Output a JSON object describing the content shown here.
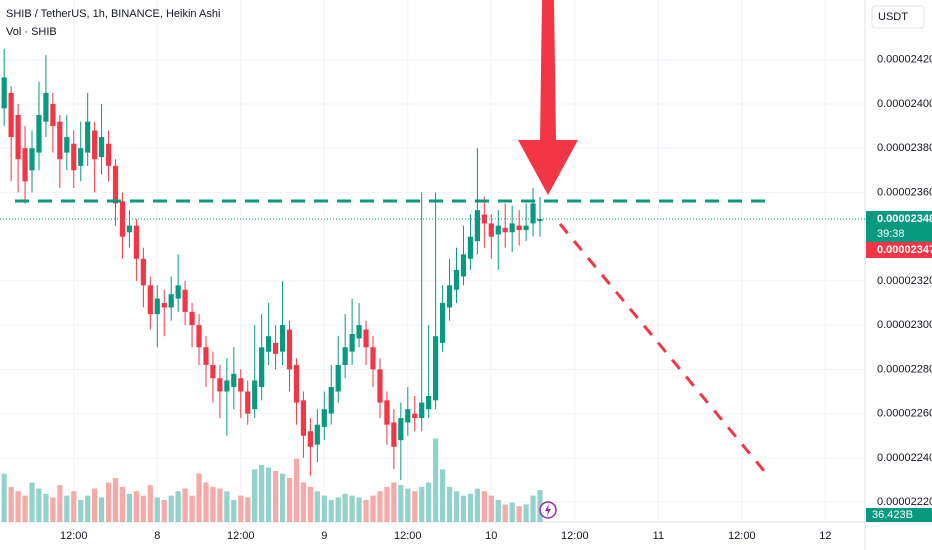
{
  "chart_data": {
    "type": "candlestick",
    "title": "SHIB / TetherUS, 1h, BINANCE, Heikin Ashi",
    "subtitle": "Vol · SHIB",
    "currency": "USDT",
    "up_color": "#089981",
    "down_color": "#f23645",
    "volume_up_color": "#92d2cc",
    "volume_down_color": "#f7a9a7",
    "xlim": [
      -0.6,
      123.7
    ],
    "xticks": [
      {
        "value": 10,
        "label": "12:00"
      },
      {
        "value": 22,
        "label": "8"
      },
      {
        "value": 34,
        "label": "12:00"
      },
      {
        "value": 46,
        "label": "9"
      },
      {
        "value": 58,
        "label": "12:00"
      },
      {
        "value": 70,
        "label": "10"
      },
      {
        "value": 82,
        "label": "12:00"
      },
      {
        "value": 94,
        "label": "11"
      },
      {
        "value": 106,
        "label": "12:00"
      },
      {
        "value": 118,
        "label": "12"
      }
    ],
    "ylim": [
      2.211e-05,
      2.447e-05
    ],
    "yticks": [
      {
        "value": 2.42e-05,
        "label": "0.00002420"
      },
      {
        "value": 2.4e-05,
        "label": "0.00002400"
      },
      {
        "value": 2.38e-05,
        "label": "0.00002380"
      },
      {
        "value": 2.36e-05,
        "label": "0.00002360"
      },
      {
        "value": 2.32e-05,
        "label": "0.00002320"
      },
      {
        "value": 2.3e-05,
        "label": "0.00002300"
      },
      {
        "value": 2.28e-05,
        "label": "0.00002280"
      },
      {
        "value": 2.26e-05,
        "label": "0.00002260"
      },
      {
        "value": 2.24e-05,
        "label": "0.00002240"
      },
      {
        "value": 2.22e-05,
        "label": "0.00002220"
      }
    ],
    "volume_lim": [
      0,
      594
    ],
    "open": [
      2.398e-05,
      2.405e-05,
      2.395e-05,
      2.38e-05,
      2.37e-05,
      2.378e-05,
      2.392e-05,
      2.4e-05,
      2.392e-05,
      2.378e-05,
      2.382e-05,
      2.372e-05,
      2.378e-05,
      2.388e-05,
      2.376e-05,
      2.382e-05,
      2.372e-05,
      2.356e-05,
      2.342e-05,
      2.345e-05,
      2.33e-05,
      2.318e-05,
      2.305e-05,
      2.31e-05,
      2.308e-05,
      2.312e-05,
      2.316e-05,
      2.306e-05,
      2.3e-05,
      2.29e-05,
      2.282e-05,
      2.276e-05,
      2.27e-05,
      2.272e-05,
      2.276e-05,
      2.27e-05,
      2.262e-05,
      2.272e-05,
      2.288e-05,
      2.292e-05,
      2.288e-05,
      2.298e-05,
      2.282e-05,
      2.266e-05,
      2.252e-05,
      2.246e-05,
      2.254e-05,
      2.26e-05,
      2.27e-05,
      2.282e-05,
      2.288e-05,
      2.294e-05,
      2.298e-05,
      2.29e-05,
      2.28e-05,
      2.266e-05,
      2.256e-05,
      2.248e-05,
      2.256e-05,
      2.26e-05,
      2.258e-05,
      2.262e-05,
      2.266e-05,
      2.292e-05,
      2.308e-05,
      2.316e-05,
      2.322e-05,
      2.33e-05,
      2.338e-05,
      2.35e-05,
      2.346e-05,
      2.341e-05,
      2.344e-05,
      2.342e-05,
      2.345e-05,
      2.343e-05,
      2.346e-05,
      2.347e-05
    ],
    "high": [
      2.425e-05,
      2.408e-05,
      2.4e-05,
      2.39e-05,
      2.388e-05,
      2.41e-05,
      2.422e-05,
      2.405e-05,
      2.395e-05,
      2.395e-05,
      2.388e-05,
      2.392e-05,
      2.405e-05,
      2.392e-05,
      2.4e-05,
      2.388e-05,
      2.375e-05,
      2.36e-05,
      2.352e-05,
      2.348e-05,
      2.335e-05,
      2.322e-05,
      2.318e-05,
      2.316e-05,
      2.322e-05,
      2.332e-05,
      2.32e-05,
      2.31e-05,
      2.305e-05,
      2.295e-05,
      2.288e-05,
      2.282e-05,
      2.285e-05,
      2.29e-05,
      2.28e-05,
      2.275e-05,
      2.3e-05,
      2.305e-05,
      2.31e-05,
      2.3e-05,
      2.32e-05,
      2.302e-05,
      2.285e-05,
      2.27e-05,
      2.258e-05,
      2.262e-05,
      2.27e-05,
      2.282e-05,
      2.295e-05,
      2.305e-05,
      2.312e-05,
      2.31e-05,
      2.302e-05,
      2.295e-05,
      2.285e-05,
      2.27e-05,
      2.262e-05,
      2.265e-05,
      2.272e-05,
      2.268e-05,
      2.36e-05,
      2.3e-05,
      2.36e-05,
      2.318e-05,
      2.33e-05,
      2.335e-05,
      2.345e-05,
      2.35e-05,
      2.38e-05,
      2.358e-05,
      2.35e-05,
      2.352e-05,
      2.355e-05,
      2.354e-05,
      2.352e-05,
      2.355e-05,
      2.362e-05,
      2.358e-05
    ],
    "low": [
      2.39e-05,
      2.365e-05,
      2.36e-05,
      2.355e-05,
      2.36e-05,
      2.37e-05,
      2.385e-05,
      2.378e-05,
      2.362e-05,
      2.37e-05,
      2.362e-05,
      2.365e-05,
      2.372e-05,
      2.36e-05,
      2.368e-05,
      2.365e-05,
      2.345e-05,
      2.33e-05,
      2.335e-05,
      2.32e-05,
      2.308e-05,
      2.298e-05,
      2.29e-05,
      2.295e-05,
      2.302e-05,
      2.306e-05,
      2.3e-05,
      2.29e-05,
      2.282e-05,
      2.272e-05,
      2.265e-05,
      2.258e-05,
      2.25e-05,
      2.262e-05,
      2.258e-05,
      2.255e-05,
      2.258e-05,
      2.266e-05,
      2.282e-05,
      2.28e-05,
      2.282e-05,
      2.27e-05,
      2.255e-05,
      2.24e-05,
      2.232e-05,
      2.238e-05,
      2.248e-05,
      2.255e-05,
      2.265e-05,
      2.276e-05,
      2.282e-05,
      2.29e-05,
      2.282e-05,
      2.272e-05,
      2.258e-05,
      2.246e-05,
      2.235e-05,
      2.23e-05,
      2.25e-05,
      2.252e-05,
      2.252e-05,
      2.258e-05,
      2.262e-05,
      2.288e-05,
      2.302e-05,
      2.31e-05,
      2.318e-05,
      2.325e-05,
      2.332e-05,
      2.335e-05,
      2.33e-05,
      2.325e-05,
      2.335e-05,
      2.333e-05,
      2.336e-05,
      2.338e-05,
      2.34e-05,
      2.34e-05
    ],
    "close": [
      2.412e-05,
      2.385e-05,
      2.375e-05,
      2.365e-05,
      2.38e-05,
      2.395e-05,
      2.405e-05,
      2.39e-05,
      2.375e-05,
      2.385e-05,
      2.37e-05,
      2.38e-05,
      2.392e-05,
      2.375e-05,
      2.385e-05,
      2.372e-05,
      2.355e-05,
      2.34e-05,
      2.345e-05,
      2.33e-05,
      2.318e-05,
      2.305e-05,
      2.312e-05,
      2.308e-05,
      2.314e-05,
      2.318e-05,
      2.306e-05,
      2.3e-05,
      2.29e-05,
      2.282e-05,
      2.276e-05,
      2.27e-05,
      2.275e-05,
      2.278e-05,
      2.27e-05,
      2.26e-05,
      2.275e-05,
      2.29e-05,
      2.295e-05,
      2.287e-05,
      2.3e-05,
      2.28e-05,
      2.265e-05,
      2.25e-05,
      2.245e-05,
      2.255e-05,
      2.262e-05,
      2.272e-05,
      2.282e-05,
      2.29e-05,
      2.296e-05,
      2.3e-05,
      2.29e-05,
      2.28e-05,
      2.265e-05,
      2.255e-05,
      2.245e-05,
      2.258e-05,
      2.262e-05,
      2.258e-05,
      2.265e-05,
      2.268e-05,
      2.295e-05,
      2.31e-05,
      2.318e-05,
      2.325e-05,
      2.332e-05,
      2.34e-05,
      2.352e-05,
      2.346e-05,
      2.34e-05,
      2.345e-05,
      2.342e-05,
      2.346e-05,
      2.343e-05,
      2.345e-05,
      2.355e-05,
      2.348e-05
    ],
    "volume": [
      55,
      40,
      35,
      30,
      45,
      38,
      32,
      28,
      42,
      30,
      35,
      25,
      30,
      38,
      28,
      45,
      50,
      40,
      32,
      35,
      30,
      42,
      28,
      25,
      30,
      35,
      38,
      30,
      55,
      45,
      40,
      38,
      35,
      25,
      30,
      28,
      60,
      65,
      62,
      58,
      55,
      50,
      72,
      45,
      40,
      35,
      30,
      25,
      28,
      32,
      30,
      28,
      25,
      30,
      35,
      40,
      45,
      42,
      38,
      35,
      40,
      45,
      95,
      60,
      40,
      35,
      30,
      32,
      38,
      35,
      30,
      25,
      20,
      22,
      18,
      20,
      30,
      36.423
    ],
    "volume_labels": [
      null,
      null,
      null,
      null,
      null,
      null,
      null,
      null,
      null,
      null,
      null,
      null,
      null,
      null,
      null,
      null,
      null,
      null,
      null,
      null,
      null,
      null,
      null,
      null,
      null,
      null,
      null,
      null,
      null,
      null,
      null,
      null,
      null,
      null,
      null,
      null,
      null,
      null,
      null,
      null,
      null,
      null,
      null,
      null,
      null,
      null,
      null,
      null,
      null,
      null,
      null,
      null,
      null,
      null,
      null,
      null,
      null,
      null,
      null,
      null,
      null,
      null,
      null,
      null,
      null,
      null,
      null,
      null,
      null,
      null,
      null,
      null,
      null,
      null,
      null,
      null,
      null,
      "36.423B"
    ],
    "last_price": {
      "value": 2.348e-05,
      "label": "0.00002348"
    },
    "countdown": "39:38",
    "bid_price": {
      "value": 2.347e-05,
      "label": "0.00002347"
    }
  }
}
